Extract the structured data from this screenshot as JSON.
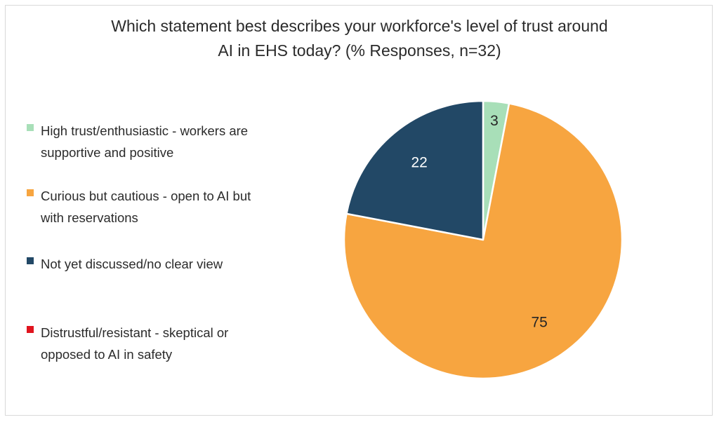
{
  "chart_data": {
    "type": "pie",
    "title_lines": [
      "Which statement best describes your workforce's level of trust around",
      "AI in EHS today? (% Responses, n=32)"
    ],
    "slices": [
      {
        "label_lines": [
          "High trust/enthusiastic - workers are",
          "supportive and positive"
        ],
        "value": 3,
        "color": "#a8dfb8",
        "label_color": "#262626"
      },
      {
        "label_lines": [
          "Curious but cautious - open to AI but",
          "with reservations"
        ],
        "value": 75,
        "color": "#f7a540",
        "label_color": "#262626"
      },
      {
        "label_lines": [
          "Not yet discussed/no clear view"
        ],
        "value": 22,
        "color": "#224866",
        "label_color": "#ffffff"
      },
      {
        "label_lines": [
          "Distrustful/resistant - skeptical or",
          "opposed to AI in safety"
        ],
        "value": 0,
        "color": "#e0141e",
        "label_color": "#262626"
      }
    ],
    "legend_position": "left",
    "start_angle": "12 o'clock, clockwise"
  }
}
